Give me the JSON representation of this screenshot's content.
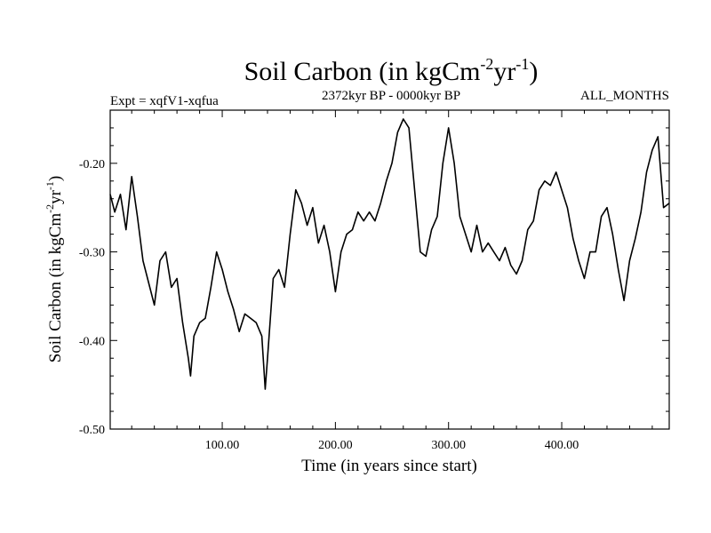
{
  "chart_data": {
    "type": "line",
    "title": "Soil Carbon (in kgCm",
    "title_sup1": "-2",
    "title_mid": "yr",
    "title_sup2": "-1",
    "title_end": ")",
    "subtitle_left": "Expt = xqfV1-xqfua",
    "subtitle_center": "2372kyr BP - 0000kyr BP",
    "subtitle_right": "ALL_MONTHS",
    "xlabel": "Time (in years since start)",
    "ylabel_pre": "Soil Carbon (in kgCm",
    "ylabel_sup1": "-2",
    "ylabel_mid": "yr",
    "ylabel_sup2": "-1",
    "ylabel_end": ")",
    "xlim": [
      1,
      495
    ],
    "ylim": [
      -0.5,
      -0.14
    ],
    "x_ticks": [
      {
        "value": 100,
        "label": "100.00"
      },
      {
        "value": 200,
        "label": "200.00"
      },
      {
        "value": 300,
        "label": "300.00"
      },
      {
        "value": 400,
        "label": "400.00"
      }
    ],
    "x_minor_step": 20,
    "y_ticks": [
      {
        "value": -0.5,
        "label": "-0.50"
      },
      {
        "value": -0.4,
        "label": "-0.40"
      },
      {
        "value": -0.3,
        "label": "-0.30"
      },
      {
        "value": -0.2,
        "label": "-0.20"
      }
    ],
    "y_minor_step": 0.02,
    "series": [
      {
        "name": "Soil Carbon",
        "color": "#000000",
        "x": [
          1,
          5,
          10,
          15,
          20,
          25,
          30,
          35,
          40,
          45,
          50,
          55,
          60,
          65,
          70,
          72,
          75,
          80,
          85,
          90,
          95,
          100,
          105,
          110,
          115,
          120,
          125,
          130,
          135,
          138,
          140,
          145,
          150,
          155,
          160,
          165,
          170,
          175,
          180,
          185,
          190,
          195,
          200,
          205,
          210,
          215,
          220,
          225,
          230,
          235,
          240,
          245,
          250,
          255,
          260,
          265,
          270,
          275,
          280,
          285,
          290,
          295,
          300,
          305,
          310,
          315,
          320,
          325,
          330,
          335,
          340,
          345,
          350,
          355,
          360,
          365,
          370,
          375,
          380,
          385,
          390,
          395,
          400,
          405,
          410,
          415,
          420,
          425,
          430,
          435,
          440,
          445,
          450,
          455,
          460,
          465,
          470,
          475,
          480,
          485,
          490,
          495
        ],
        "values": [
          -0.235,
          -0.255,
          -0.235,
          -0.275,
          -0.215,
          -0.26,
          -0.31,
          -0.335,
          -0.36,
          -0.31,
          -0.3,
          -0.34,
          -0.33,
          -0.38,
          -0.42,
          -0.44,
          -0.395,
          -0.38,
          -0.375,
          -0.34,
          -0.3,
          -0.32,
          -0.345,
          -0.365,
          -0.39,
          -0.37,
          -0.375,
          -0.38,
          -0.395,
          -0.455,
          -0.42,
          -0.33,
          -0.32,
          -0.34,
          -0.28,
          -0.23,
          -0.245,
          -0.27,
          -0.25,
          -0.29,
          -0.27,
          -0.3,
          -0.345,
          -0.3,
          -0.28,
          -0.275,
          -0.255,
          -0.265,
          -0.255,
          -0.265,
          -0.245,
          -0.22,
          -0.2,
          -0.165,
          -0.15,
          -0.16,
          -0.23,
          -0.3,
          -0.305,
          -0.275,
          -0.26,
          -0.2,
          -0.16,
          -0.2,
          -0.26,
          -0.28,
          -0.3,
          -0.27,
          -0.3,
          -0.29,
          -0.3,
          -0.31,
          -0.295,
          -0.315,
          -0.325,
          -0.31,
          -0.275,
          -0.265,
          -0.23,
          -0.22,
          -0.225,
          -0.21,
          -0.23,
          -0.25,
          -0.285,
          -0.31,
          -0.33,
          -0.3,
          -0.3,
          -0.26,
          -0.25,
          -0.28,
          -0.32,
          -0.355,
          -0.31,
          -0.285,
          -0.255,
          -0.21,
          -0.185,
          -0.17,
          -0.25,
          -0.245
        ]
      }
    ]
  }
}
